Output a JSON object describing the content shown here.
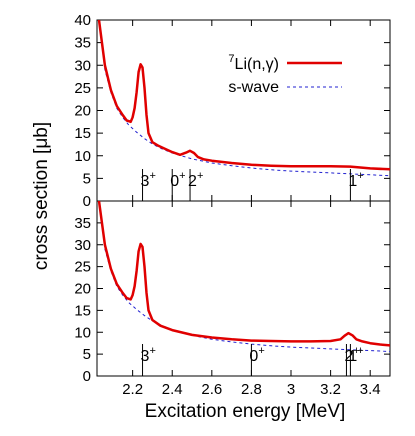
{
  "chart_data": [
    {
      "type": "line",
      "panel": "top",
      "xlim": [
        2.02,
        3.5
      ],
      "ylim": [
        0,
        40
      ],
      "yticks": [
        "0",
        "5",
        "10",
        "15",
        "20",
        "25",
        "30",
        "35",
        "40"
      ],
      "legend_placement": "top-right",
      "series": [
        {
          "name": "Li(n,γ)",
          "name_superscript": "7",
          "color": "#e00000",
          "style": "solid",
          "x": [
            2.03,
            2.06,
            2.09,
            2.12,
            2.15,
            2.17,
            2.19,
            2.2,
            2.21,
            2.22,
            2.23,
            2.24,
            2.25,
            2.26,
            2.27,
            2.28,
            2.3,
            2.33,
            2.36,
            2.4,
            2.44,
            2.47,
            2.49,
            2.51,
            2.53,
            2.56,
            2.6,
            2.7,
            2.8,
            2.9,
            3.0,
            3.1,
            3.2,
            3.3,
            3.4,
            3.5
          ],
          "y": [
            40,
            30,
            24.5,
            21,
            19,
            17.8,
            17.5,
            18.5,
            20.5,
            24,
            28.5,
            30.2,
            29.5,
            25,
            19,
            15,
            13,
            12.2,
            11.6,
            10.8,
            10.2,
            10.7,
            11.1,
            10.6,
            9.7,
            9.2,
            8.9,
            8.4,
            8.0,
            7.8,
            7.7,
            7.7,
            7.7,
            7.6,
            7.2,
            7.0
          ]
        },
        {
          "name": "s-wave",
          "color": "#2020d0",
          "style": "dashed",
          "x": [
            2.03,
            2.06,
            2.09,
            2.12,
            2.15,
            2.18,
            2.22,
            2.26,
            2.3,
            2.35,
            2.4,
            2.5,
            2.6,
            2.7,
            2.8,
            2.9,
            3.0,
            3.2,
            3.4,
            3.5
          ],
          "y": [
            40,
            29,
            24,
            20.5,
            18.5,
            16.8,
            15.2,
            13.8,
            12.6,
            11.5,
            10.6,
            9.3,
            8.4,
            7.8,
            7.3,
            6.9,
            6.6,
            6.2,
            5.8,
            5.6
          ]
        }
      ],
      "levels": [
        {
          "x": 2.25,
          "label": "3",
          "parity": "+"
        },
        {
          "x": 2.4,
          "label": "0",
          "parity": "+"
        },
        {
          "x": 2.49,
          "label": "2",
          "parity": "+"
        },
        {
          "x": 3.3,
          "label": "1",
          "parity": "+"
        }
      ]
    },
    {
      "type": "line",
      "panel": "bottom",
      "xlim": [
        2.02,
        3.5
      ],
      "ylim": [
        0,
        40
      ],
      "xticks": [
        "2.2",
        "2.4",
        "2.6",
        "2.8",
        "3",
        "3.2",
        "3.4"
      ],
      "yticks": [
        "0",
        "5",
        "10",
        "15",
        "20",
        "25",
        "30",
        "35"
      ],
      "series": [
        {
          "name": "Li(n,γ)",
          "name_superscript": "7",
          "color": "#e00000",
          "style": "solid",
          "x": [
            2.03,
            2.06,
            2.09,
            2.12,
            2.15,
            2.17,
            2.19,
            2.2,
            2.21,
            2.22,
            2.23,
            2.24,
            2.25,
            2.26,
            2.27,
            2.28,
            2.3,
            2.34,
            2.4,
            2.5,
            2.6,
            2.7,
            2.8,
            2.9,
            3.0,
            3.1,
            3.2,
            3.25,
            3.27,
            3.29,
            3.31,
            3.33,
            3.36,
            3.4,
            3.45,
            3.5
          ],
          "y": [
            40,
            30,
            24.5,
            21,
            19,
            17.8,
            17.5,
            18.5,
            20.5,
            24,
            28.5,
            30.2,
            29.5,
            25,
            19,
            15,
            12.8,
            11.5,
            10.5,
            9.4,
            8.8,
            8.4,
            8.1,
            8.0,
            7.9,
            7.9,
            8.0,
            8.4,
            9.2,
            9.8,
            9.3,
            8.4,
            7.9,
            7.5,
            7.2,
            7.0
          ]
        },
        {
          "name": "s-wave",
          "color": "#2020d0",
          "style": "dashed",
          "x": [
            2.03,
            2.06,
            2.09,
            2.12,
            2.15,
            2.18,
            2.22,
            2.26,
            2.3,
            2.35,
            2.4,
            2.5,
            2.6,
            2.7,
            2.8,
            2.9,
            3.0,
            3.2,
            3.4,
            3.5
          ],
          "y": [
            40,
            29,
            24,
            20.5,
            18.5,
            16.8,
            15.2,
            13.8,
            12.6,
            11.5,
            10.6,
            9.3,
            8.4,
            7.8,
            7.3,
            6.9,
            6.6,
            6.2,
            5.8,
            5.6
          ]
        }
      ],
      "levels": [
        {
          "x": 2.25,
          "label": "3",
          "parity": "+"
        },
        {
          "x": 2.8,
          "label": "0",
          "parity": "+"
        },
        {
          "x": 3.28,
          "label": "2",
          "parity": "+"
        },
        {
          "x": 3.3,
          "label": "1",
          "parity": "+"
        }
      ]
    }
  ],
  "ylabel": "cross section [μb]",
  "xlabel": "Excitation energy [MeV]"
}
